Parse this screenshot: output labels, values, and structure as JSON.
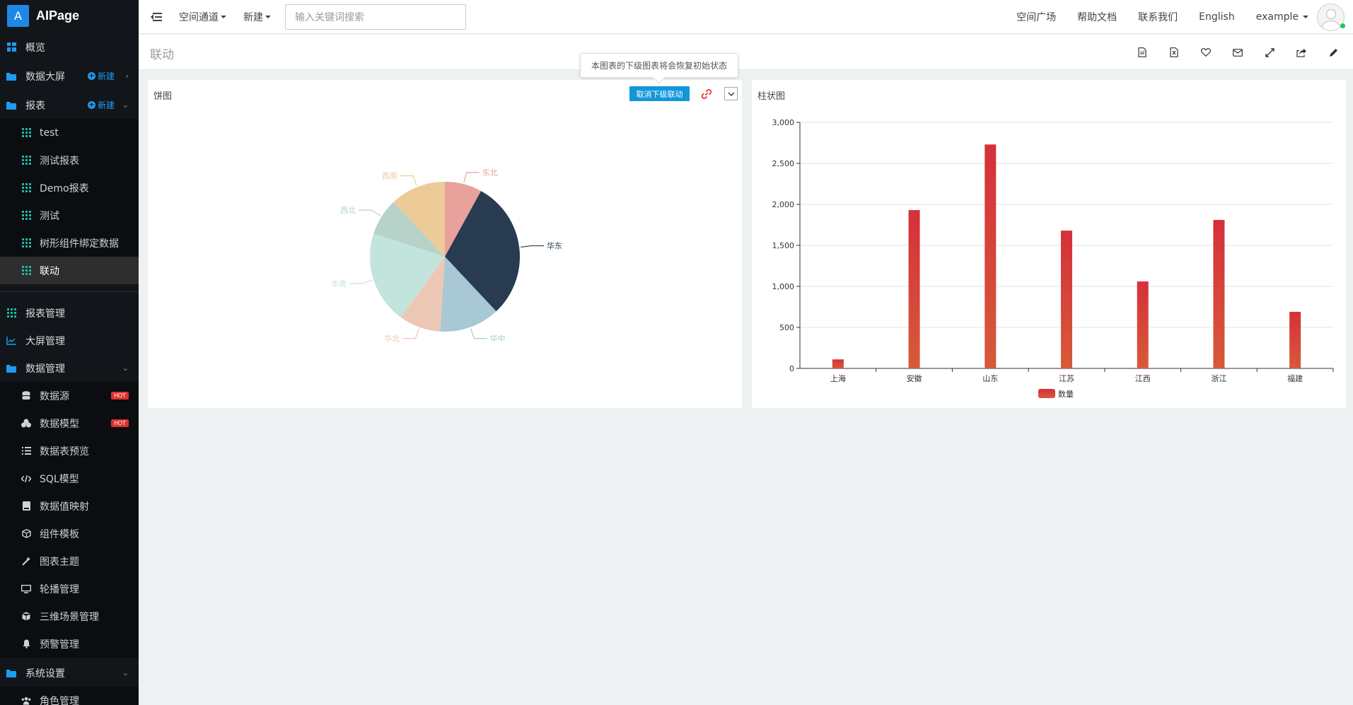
{
  "app": {
    "logo_letter": "A",
    "name": "AIPage"
  },
  "sidebar": {
    "overview": "概览",
    "data_screen": "数据大屏",
    "new_label": "新建",
    "reports": "报表",
    "report_items": [
      "test",
      "测试报表",
      "Demo报表",
      "测试",
      "树形组件绑定数据",
      "联动"
    ],
    "report_manage": "报表管理",
    "screen_manage": "大屏管理",
    "data_manage": "数据管理",
    "data_items": [
      "数据源",
      "数据模型",
      "数据表预览",
      "SQL模型",
      "数据值映射",
      "组件模板",
      "图表主题",
      "轮播管理",
      "三维场景管理",
      "预警管理"
    ],
    "hot_label": "HOT",
    "system_settings": "系统设置",
    "role_manage": "角色管理"
  },
  "topbar": {
    "space_channel": "空间通道",
    "new": "新建",
    "search_placeholder": "输入关键词搜索",
    "space_square": "空间广场",
    "help_docs": "帮助文档",
    "contact_us": "联系我们",
    "language": "English",
    "user": "example"
  },
  "page": {
    "title": "联动"
  },
  "tooltip": "本图表的下级图表将会恢复初始状态",
  "pie_panel": {
    "title": "饼图",
    "cancel_button": "取消下级联动"
  },
  "bar_panel": {
    "title": "柱状图"
  },
  "chart_data": [
    {
      "type": "pie",
      "title": "饼图",
      "slices": [
        {
          "name": "东北",
          "value": 8,
          "color": "#e8a19b"
        },
        {
          "name": "华东",
          "value": 30,
          "color": "#283b50"
        },
        {
          "name": "华中",
          "value": 13,
          "color": "#a8c8d3"
        },
        {
          "name": "华北",
          "value": 9,
          "color": "#edc7b6"
        },
        {
          "name": "华南",
          "value": 20,
          "color": "#c3e3dd"
        },
        {
          "name": "西北",
          "value": 8,
          "color": "#b7d2c8"
        },
        {
          "name": "西南",
          "value": 12,
          "color": "#eccb98"
        }
      ]
    },
    {
      "type": "bar",
      "title": "柱状图",
      "categories": [
        "上海",
        "安徽",
        "山东",
        "江苏",
        "江西",
        "浙江",
        "福建"
      ],
      "series": [
        {
          "name": "数量",
          "values": [
            110,
            1930,
            2730,
            1680,
            1060,
            1810,
            690
          ]
        }
      ],
      "ylim": [
        0,
        3000
      ],
      "yticks": [
        "0",
        "500",
        "1,000",
        "1,500",
        "2,000",
        "2,500",
        "3,000"
      ],
      "grid": true,
      "legend": "bottom-center",
      "bar_color_top": "#d6303a",
      "bar_color_bottom": "#d65a3a"
    }
  ]
}
